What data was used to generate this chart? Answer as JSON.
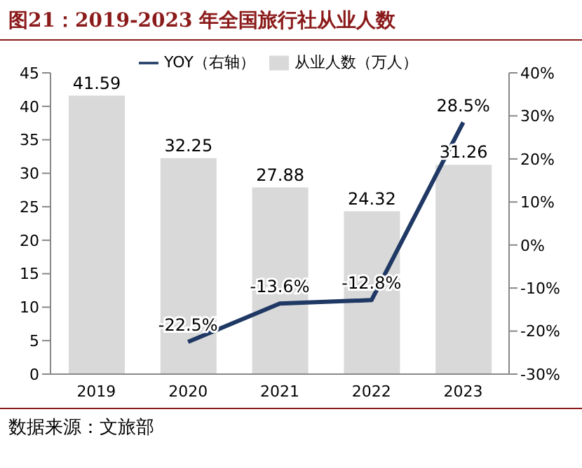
{
  "chart_data": {
    "type": "bar",
    "title": "图21：2019-2023 年全国旅行社从业人数",
    "categories": [
      "2019",
      "2020",
      "2021",
      "2022",
      "2023"
    ],
    "series": [
      {
        "name": "从业人数（万人）",
        "color": "#d9d9d9",
        "values": [
          41.59,
          32.25,
          27.88,
          24.32,
          31.26
        ],
        "value_labels": [
          "41.59",
          "32.25",
          "27.88",
          "24.32",
          "31.26"
        ]
      },
      {
        "name": "YOY（右轴）",
        "type": "line",
        "axis": "y2",
        "color": "#1f3864",
        "values": [
          null,
          -22.5,
          -13.6,
          -12.8,
          28.5
        ],
        "value_labels": [
          null,
          "-22.5%",
          "-13.6%",
          "-12.8%",
          "28.5%"
        ]
      }
    ],
    "ylim": [
      0,
      45
    ],
    "yticks": [
      0,
      5,
      10,
      15,
      20,
      25,
      30,
      35,
      40,
      45
    ],
    "y2lim": [
      -30,
      40
    ],
    "y2ticks": [
      {
        "value": -30,
        "label": "-30%"
      },
      {
        "value": -20,
        "label": "-20%"
      },
      {
        "value": -10,
        "label": "-10%"
      },
      {
        "value": 0,
        "label": "0%"
      },
      {
        "value": 10,
        "label": "10%"
      },
      {
        "value": 20,
        "label": "20%"
      },
      {
        "value": 30,
        "label": "30%"
      },
      {
        "value": 40,
        "label": "40%"
      }
    ],
    "grid": false,
    "legend": "top",
    "marker": "none",
    "line_style": "solid",
    "annotations": [
      "数据来源：文旅部"
    ]
  }
}
